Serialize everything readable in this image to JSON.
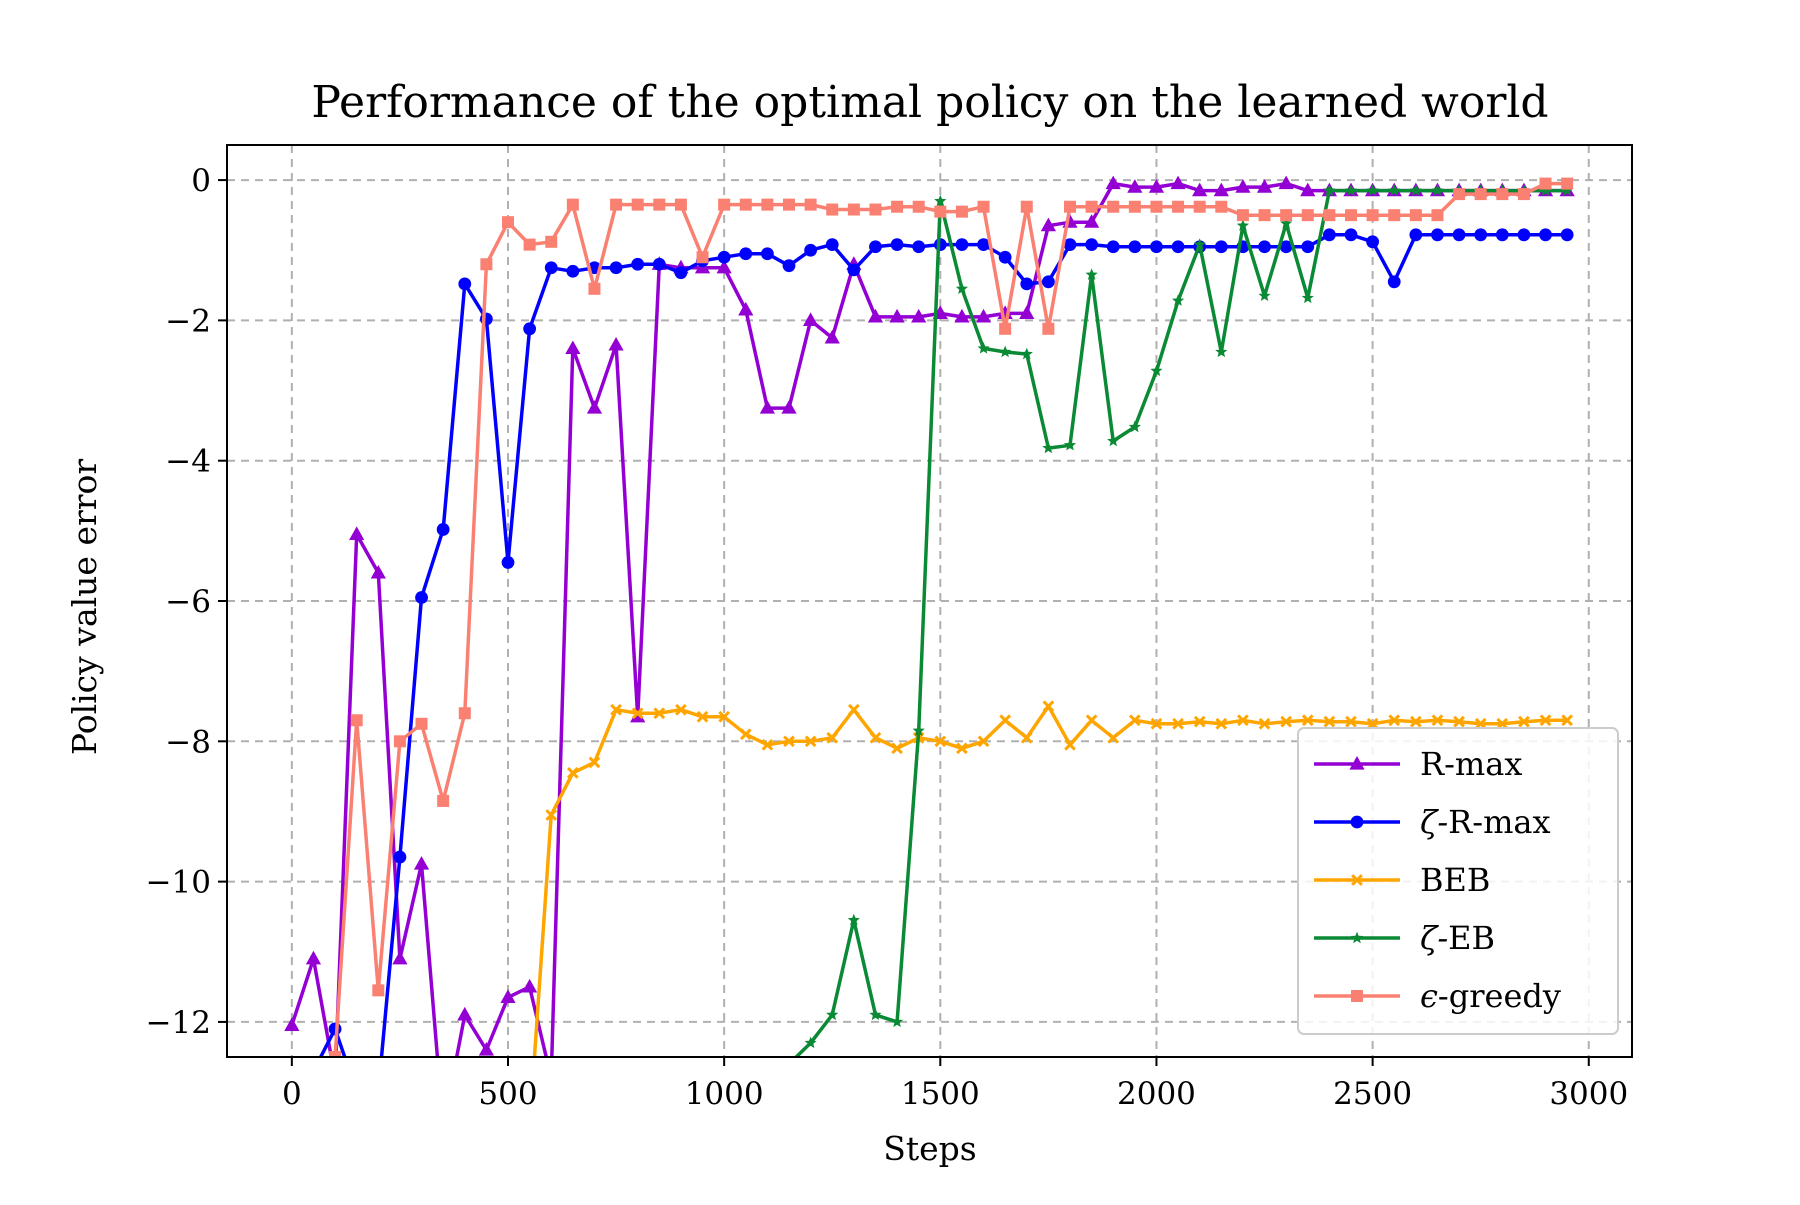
{
  "chart_data": {
    "type": "line",
    "title": "Performance of the optimal policy on the learned world",
    "xlabel": "Steps",
    "ylabel": "Policy value error",
    "xlim": [
      -150,
      3100
    ],
    "ylim": [
      -12.5,
      0.5
    ],
    "xticks": [
      0,
      500,
      1000,
      1500,
      2000,
      2500,
      3000
    ],
    "xtick_labels": [
      "0",
      "500",
      "1000",
      "1500",
      "2000",
      "2500",
      "3000"
    ],
    "yticks": [
      0,
      -2,
      -4,
      -6,
      -8,
      -10,
      -12
    ],
    "ytick_labels": [
      "0",
      "−2",
      "−4",
      "−6",
      "−8",
      "−10",
      "−12"
    ],
    "grid": true,
    "legend_position": "lower right",
    "x": [
      0,
      50,
      100,
      150,
      200,
      250,
      300,
      350,
      400,
      450,
      500,
      550,
      600,
      650,
      700,
      750,
      800,
      850,
      900,
      950,
      1000,
      1050,
      1100,
      1150,
      1200,
      1250,
      1300,
      1350,
      1400,
      1450,
      1500,
      1550,
      1600,
      1650,
      1700,
      1750,
      1800,
      1850,
      1900,
      1950,
      2000,
      2050,
      2100,
      2150,
      2200,
      2250,
      2300,
      2350,
      2400,
      2450,
      2500,
      2550,
      2600,
      2650,
      2700,
      2750,
      2800,
      2850,
      2900,
      2950
    ],
    "series": [
      {
        "name": "R-max",
        "label_prefix": "",
        "color": "#9400d3",
        "marker": "triangle",
        "values": [
          -12.05,
          -11.1,
          -12.8,
          -5.05,
          -5.6,
          -11.1,
          -9.75,
          -13.5,
          -11.9,
          -12.4,
          -11.65,
          -11.5,
          -12.8,
          -2.4,
          -3.25,
          -2.35,
          -7.65,
          -1.2,
          -1.25,
          -1.25,
          -1.25,
          -1.85,
          -3.25,
          -3.25,
          -2.0,
          -2.25,
          -1.2,
          -1.95,
          -1.95,
          -1.95,
          -1.9,
          -1.95,
          -1.95,
          -1.9,
          -1.9,
          -0.65,
          -0.6,
          -0.6,
          -0.05,
          -0.1,
          -0.1,
          -0.05,
          -0.15,
          -0.15,
          -0.1,
          -0.1,
          -0.05,
          -0.15,
          -0.15,
          -0.15,
          -0.15,
          -0.15,
          -0.15,
          -0.15,
          -0.15,
          -0.15,
          -0.15,
          -0.15,
          -0.15,
          -0.15
        ]
      },
      {
        "name": "R-max",
        "label_prefix": "ζ-",
        "color": "#0000ff",
        "marker": "circle",
        "values": [
          -12.6,
          -12.7,
          -12.1,
          -13.0,
          -13.0,
          -9.65,
          -5.95,
          -4.98,
          -1.48,
          -1.98,
          -5.45,
          -2.12,
          -1.25,
          -1.3,
          -1.25,
          -1.25,
          -1.2,
          -1.2,
          -1.32,
          -1.15,
          -1.1,
          -1.05,
          -1.05,
          -1.22,
          -1.0,
          -0.92,
          -1.28,
          -0.95,
          -0.92,
          -0.95,
          -0.92,
          -0.92,
          -0.92,
          -1.1,
          -1.48,
          -1.45,
          -0.92,
          -0.92,
          -0.95,
          -0.95,
          -0.95,
          -0.95,
          -0.95,
          -0.95,
          -0.95,
          -0.95,
          -0.95,
          -0.95,
          -0.78,
          -0.78,
          -0.88,
          -1.45,
          -0.78,
          -0.78,
          -0.78,
          -0.78,
          -0.78,
          -0.78,
          -0.78,
          -0.78
        ]
      },
      {
        "name": "BEB",
        "label_prefix": "",
        "color": "#ffa500",
        "marker": "x",
        "values": [
          -13.5,
          -13.5,
          -13.5,
          -13.5,
          -13.5,
          -13.5,
          -13.5,
          -13.5,
          -13.5,
          -13.5,
          -13.5,
          -13.5,
          -9.05,
          -8.45,
          -8.3,
          -7.55,
          -7.6,
          -7.6,
          -7.55,
          -7.65,
          -7.65,
          -7.9,
          -8.05,
          -8.0,
          -8.0,
          -7.95,
          -7.55,
          -7.95,
          -8.1,
          -7.95,
          -8.0,
          -8.1,
          -8.0,
          -7.7,
          -7.95,
          -7.5,
          -8.05,
          -7.7,
          -7.95,
          -7.7,
          -7.75,
          -7.75,
          -7.72,
          -7.75,
          -7.7,
          -7.75,
          -7.72,
          -7.7,
          -7.72,
          -7.72,
          -7.75,
          -7.7,
          -7.72,
          -7.7,
          -7.72,
          -7.75,
          -7.75,
          -7.72,
          -7.7,
          -7.7
        ]
      },
      {
        "name": "EB",
        "label_prefix": "ζ-",
        "color": "#0a8a35",
        "marker": "star",
        "values": [
          -12.6,
          -12.6,
          -12.6,
          -12.6,
          -12.6,
          -12.6,
          -12.6,
          -12.6,
          -12.6,
          -12.6,
          -12.6,
          -12.6,
          -12.6,
          -12.6,
          -12.6,
          -12.6,
          -12.6,
          -12.6,
          -12.6,
          -12.6,
          -12.6,
          -12.6,
          -12.6,
          -12.6,
          -12.3,
          -11.9,
          -10.55,
          -11.9,
          -12.0,
          -7.85,
          -0.3,
          -1.55,
          -2.4,
          -2.45,
          -2.48,
          -3.82,
          -3.78,
          -1.35,
          -3.72,
          -3.52,
          -2.72,
          -1.72,
          -0.92,
          -2.45,
          -0.65,
          -1.65,
          -0.62,
          -1.68,
          -0.15,
          -0.15,
          -0.15,
          -0.15,
          -0.15,
          -0.15,
          -0.15,
          -0.15,
          -0.15,
          -0.15,
          -0.15,
          -0.15
        ]
      },
      {
        "name": "-greedy",
        "label_prefix": "ϵ",
        "color": "#fa8072",
        "marker": "square",
        "values": [
          -12.8,
          -12.8,
          -12.5,
          -7.7,
          -11.55,
          -8.0,
          -7.75,
          -8.85,
          -7.6,
          -1.2,
          -0.6,
          -0.92,
          -0.88,
          -0.35,
          -1.55,
          -0.35,
          -0.35,
          -0.35,
          -0.35,
          -1.1,
          -0.35,
          -0.35,
          -0.35,
          -0.35,
          -0.35,
          -0.42,
          -0.42,
          -0.42,
          -0.38,
          -0.38,
          -0.45,
          -0.45,
          -0.38,
          -2.12,
          -0.38,
          -2.12,
          -0.38,
          -0.38,
          -0.38,
          -0.38,
          -0.38,
          -0.38,
          -0.38,
          -0.38,
          -0.5,
          -0.5,
          -0.5,
          -0.5,
          -0.5,
          -0.5,
          -0.5,
          -0.5,
          -0.5,
          -0.5,
          -0.2,
          -0.2,
          -0.2,
          -0.2,
          -0.05,
          -0.05
        ]
      }
    ]
  }
}
